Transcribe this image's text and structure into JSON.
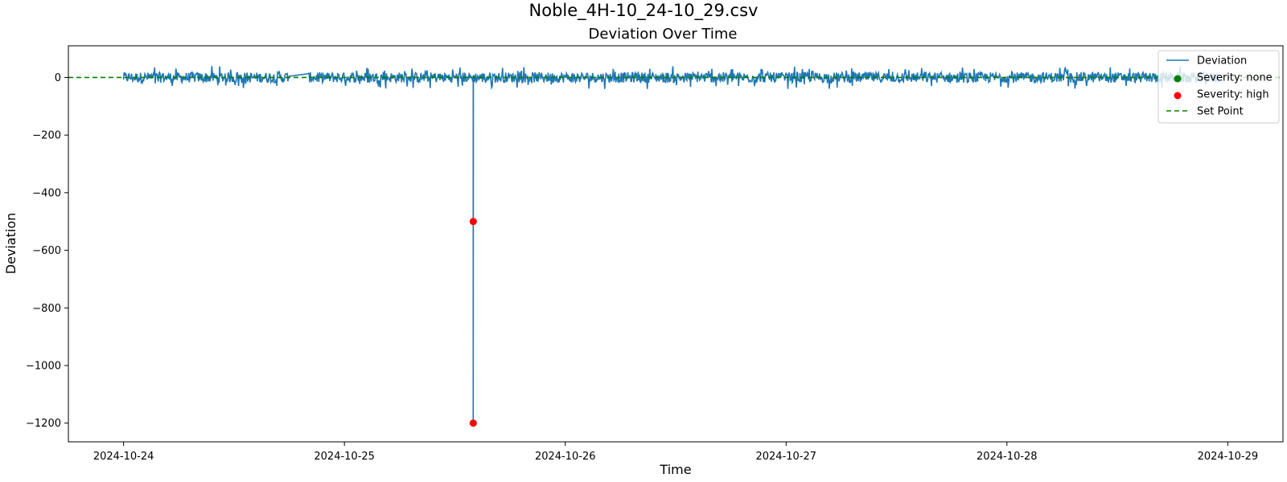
{
  "chart_data": {
    "type": "line",
    "suptitle": "Noble_4H-10_24-10_29.csv",
    "title": "Deviation Over Time",
    "xlabel": "Time",
    "ylabel": "Deviation",
    "x_ticks": [
      "2024-10-24",
      "2024-10-25",
      "2024-10-26",
      "2024-10-27",
      "2024-10-28",
      "2024-10-29"
    ],
    "y_ticks": [
      0,
      -200,
      -400,
      -600,
      -800,
      -1000,
      -1200
    ],
    "xlim": [
      "2024-10-23T18:00",
      "2024-10-29T06:00"
    ],
    "ylim": [
      -1265,
      110
    ],
    "grid": false,
    "legend_position": "top-right",
    "series": [
      {
        "name": "Deviation",
        "kind": "line",
        "color": "#1f77b4",
        "x_range": [
          "2024-10-24T00:00",
          "2024-10-28T23:00"
        ],
        "noise_amplitude": 40,
        "gap": [
          "2024-10-24T18:00",
          "2024-10-24T20:00"
        ],
        "spikes": [
          {
            "x": "2024-10-25T14:00",
            "y": -1200
          }
        ]
      },
      {
        "name": "Severity: none",
        "kind": "scatter",
        "color": "#008000",
        "points": []
      },
      {
        "name": "Severity: high",
        "kind": "scatter",
        "color": "#ff0000",
        "points": [
          {
            "x": "2024-10-25T14:00",
            "y": -500
          },
          {
            "x": "2024-10-25T14:00",
            "y": -1200
          }
        ]
      },
      {
        "name": "Set Point",
        "kind": "hline",
        "color": "#008000",
        "dashed": true,
        "y": 0
      }
    ]
  }
}
